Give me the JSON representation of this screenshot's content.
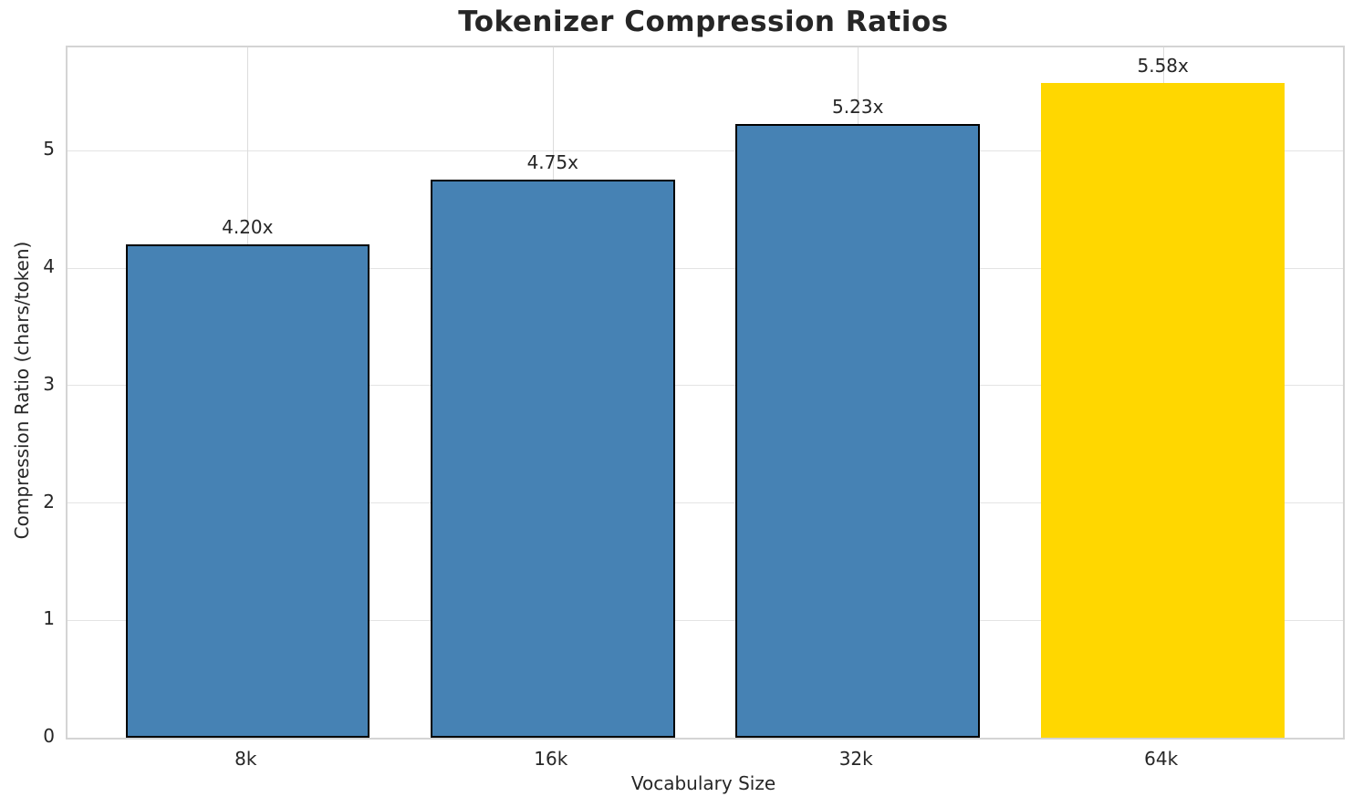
{
  "chart_data": {
    "type": "bar",
    "title": "Tokenizer Compression Ratios",
    "xlabel": "Vocabulary Size",
    "ylabel": "Compression Ratio (chars/token)",
    "categories": [
      "8k",
      "16k",
      "32k",
      "64k"
    ],
    "values": [
      4.2,
      4.75,
      5.23,
      5.58
    ],
    "bar_labels": [
      "4.20x",
      "4.75x",
      "5.23x",
      "5.58x"
    ],
    "bar_colors": [
      "#4682B4",
      "#4682B4",
      "#4682B4",
      "#FFD700"
    ],
    "bar_edge_colors": [
      "#000000",
      "#000000",
      "#000000",
      "none"
    ],
    "yticks": [
      "0",
      "1",
      "2",
      "3",
      "4",
      "5"
    ],
    "ytick_values": [
      0,
      1,
      2,
      3,
      4,
      5
    ],
    "ylim": [
      0,
      5.88
    ],
    "grid": true,
    "legend": false,
    "accent_color": "#4682B4",
    "highlight_color": "#FFD700",
    "text_color": "#262626"
  }
}
